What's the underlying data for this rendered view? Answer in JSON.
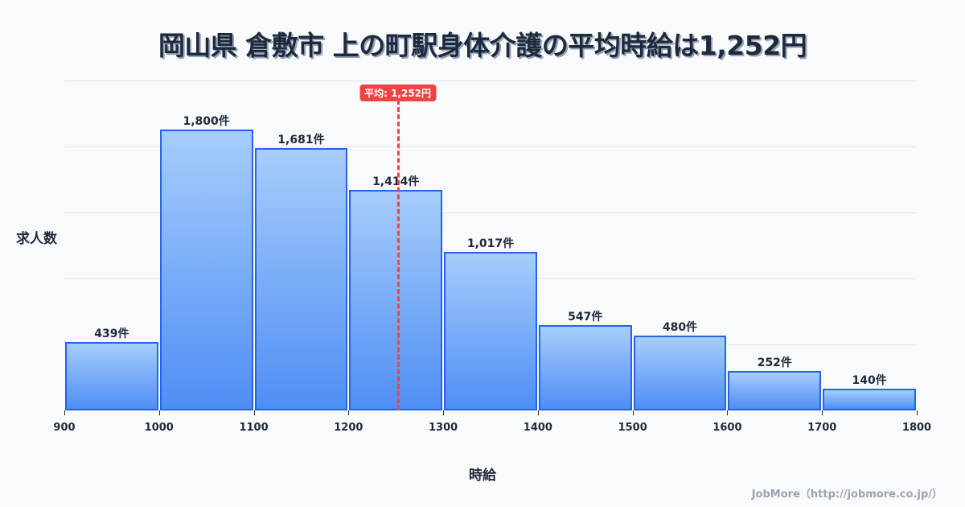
{
  "title": "岡山県 倉敷市 上の町駅身体介護の平均時給は1,252円",
  "mean_badge": "平均: 1,252円",
  "y_axis_label": "求人数",
  "x_axis_label": "時給",
  "credit": "JobMore（http://jobmore.co.jp/）",
  "bar_labels": [
    "439件",
    "1,800件",
    "1,681件",
    "1,414件",
    "1,017件",
    "547件",
    "480件",
    "252件",
    "140件"
  ],
  "tick_labels": [
    "900",
    "1000",
    "1100",
    "1200",
    "1300",
    "1400",
    "1500",
    "1600",
    "1700",
    "1800"
  ],
  "colors": {
    "bar_fill_top": "#a6cdfb",
    "bar_fill_bottom": "#4f8ef5",
    "bar_border": "#2563eb",
    "mean_line": "#ef4444",
    "text": "#1e293b",
    "background": "#f8fafc"
  },
  "chart_data": {
    "type": "bar",
    "title": "岡山県 倉敷市 上の町駅身体介護の平均時給は1,252円",
    "xlabel": "時給",
    "ylabel": "求人数",
    "bins": [
      [
        900,
        1000
      ],
      [
        1000,
        1100
      ],
      [
        1100,
        1200
      ],
      [
        1200,
        1300
      ],
      [
        1300,
        1400
      ],
      [
        1400,
        1500
      ],
      [
        1500,
        1600
      ],
      [
        1600,
        1700
      ],
      [
        1700,
        1800
      ]
    ],
    "categories": [
      "900-1000",
      "1000-1100",
      "1100-1200",
      "1200-1300",
      "1300-1400",
      "1400-1500",
      "1500-1600",
      "1600-1700",
      "1700-1800"
    ],
    "values": [
      439,
      1800,
      1681,
      1414,
      1017,
      547,
      480,
      252,
      140
    ],
    "unit": "件",
    "mean": 1252,
    "mean_label": "平均: 1,252円",
    "xlim": [
      900,
      1800
    ],
    "ylim": [
      0,
      2115
    ],
    "grid": true,
    "legend": "none"
  }
}
